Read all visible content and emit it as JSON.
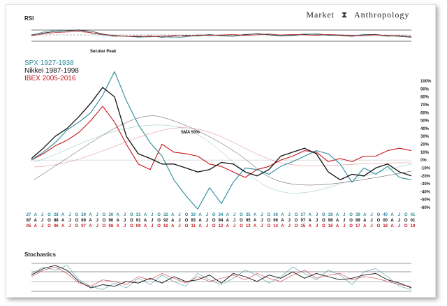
{
  "brand": {
    "left": "Market",
    "right": "Anthropology"
  },
  "colors": {
    "spx": "#2e8b9a",
    "nikkei": "#111111",
    "ibex": "#c4161c",
    "grid": "#888888"
  },
  "chart_data": [
    {
      "type": "line",
      "panel": "rsi",
      "title": "RSI",
      "series": [
        {
          "name": "SPX",
          "values": [
            48,
            62,
            70,
            66,
            72,
            58,
            50,
            44,
            46,
            40,
            42,
            44,
            38,
            42,
            48,
            52,
            46,
            44,
            50,
            56,
            52,
            48,
            50,
            54,
            52,
            48,
            50,
            46,
            52,
            50,
            44,
            48,
            42
          ]
        },
        {
          "name": "Nikkei",
          "values": [
            50,
            58,
            64,
            68,
            70,
            66,
            54,
            46,
            44,
            42,
            46,
            40,
            44,
            48,
            46,
            50,
            48,
            46,
            52,
            54,
            50,
            46,
            48,
            52,
            54,
            50,
            48,
            44,
            50,
            52,
            46,
            44,
            40
          ]
        },
        {
          "name": "IBEX",
          "values": [
            46,
            54,
            60,
            62,
            64,
            60,
            52,
            48,
            44,
            46,
            42,
            46,
            48,
            44,
            50,
            48,
            50,
            52,
            48,
            50,
            54,
            50,
            52,
            50,
            48,
            52,
            50,
            48,
            46,
            50,
            48,
            46,
            44
          ]
        }
      ],
      "ylim": [
        0,
        100
      ]
    },
    {
      "type": "line",
      "panel": "main",
      "title": "",
      "series": [
        {
          "name": "SPX 1927-1938",
          "values": [
            0,
            10,
            22,
            38,
            48,
            60,
            82,
            112,
            75,
            45,
            22,
            5,
            -25,
            -45,
            -62,
            -35,
            -55,
            -28,
            -10,
            -12,
            -18,
            -8,
            -2,
            5,
            12,
            8,
            -5,
            -28,
            -10,
            -18,
            -8,
            -22,
            -25
          ]
        },
        {
          "name": "Nikkei 1987-1998",
          "values": [
            2,
            15,
            30,
            40,
            55,
            72,
            92,
            80,
            30,
            8,
            2,
            -5,
            -5,
            -10,
            -15,
            -12,
            -3,
            -5,
            -15,
            -20,
            -12,
            5,
            10,
            15,
            8,
            -15,
            -25,
            -18,
            -20,
            -10,
            -5,
            -15,
            -20
          ]
        },
        {
          "name": "IBEX 2005-2016",
          "values": [
            0,
            8,
            18,
            25,
            35,
            50,
            68,
            48,
            20,
            -5,
            -12,
            20,
            10,
            8,
            5,
            -5,
            -8,
            -15,
            -22,
            -12,
            -8,
            0,
            5,
            12,
            10,
            -2,
            2,
            -2,
            5,
            5,
            12,
            15,
            12
          ]
        }
      ],
      "sma_label": "SMA 50%",
      "annotations": [
        "Secular Peak"
      ],
      "yticks": [
        "100%",
        "90%",
        "80%",
        "70%",
        "60%",
        "50%",
        "40%",
        "30%",
        "20%",
        "10%",
        "0%",
        "-10%",
        "-20%",
        "-30%",
        "-40%",
        "-50%",
        "-60%"
      ],
      "ylim": [
        -60,
        100
      ]
    },
    {
      "type": "line",
      "panel": "stochastics",
      "title": "Stochastics",
      "series": [
        {
          "name": "SPX",
          "values": [
            60,
            80,
            70,
            85,
            40,
            20,
            10,
            30,
            15,
            45,
            25,
            55,
            35,
            20,
            60,
            40,
            25,
            45,
            70,
            55,
            30,
            50,
            80,
            60,
            40,
            70,
            55,
            25,
            65,
            75,
            50,
            20,
            10
          ]
        },
        {
          "name": "Nikkei",
          "values": [
            55,
            75,
            85,
            70,
            35,
            15,
            25,
            20,
            35,
            30,
            45,
            30,
            50,
            35,
            40,
            55,
            30,
            60,
            50,
            35,
            55,
            45,
            65,
            45,
            60,
            50,
            40,
            45,
            55,
            60,
            40,
            30,
            15
          ]
        },
        {
          "name": "IBEX",
          "values": [
            50,
            70,
            80,
            60,
            30,
            20,
            40,
            35,
            25,
            50,
            40,
            60,
            45,
            30,
            50,
            35,
            45,
            55,
            40,
            60,
            45,
            35,
            55,
            70,
            45,
            55,
            60,
            40,
            50,
            45,
            35,
            25,
            20
          ]
        }
      ],
      "ylim": [
        0,
        100
      ]
    }
  ],
  "legend": [
    {
      "label": "SPX 1927-1938",
      "color": "#2e8b9a"
    },
    {
      "label": "Nikkei 1987-1998",
      "color": "#111111"
    },
    {
      "label": "IBEX 2005-2016",
      "color": "#c4161c"
    }
  ],
  "x_axis": {
    "spx": [
      "27",
      "A",
      "J",
      "O",
      "28",
      "A",
      "J",
      "O",
      "29",
      "A",
      "J",
      "O",
      "30",
      "A",
      "J",
      "O",
      "31",
      "A",
      "J",
      "O",
      "32",
      "A",
      "J",
      "O",
      "33",
      "A",
      "J",
      "O",
      "34",
      "A",
      "J",
      "O",
      "35",
      "A",
      "J",
      "O",
      "36",
      "A",
      "J",
      "O",
      "37",
      "A",
      "J",
      "O",
      "38",
      "A",
      "J",
      "O",
      "39",
      "A",
      "J",
      "O",
      "40",
      "A",
      "J",
      "O",
      "41"
    ],
    "nikkei": [
      "87",
      "A",
      "J",
      "O",
      "88",
      "A",
      "J",
      "O",
      "89",
      "A",
      "J",
      "O",
      "90",
      "A",
      "J",
      "O",
      "91",
      "A",
      "J",
      "O",
      "92",
      "A",
      "J",
      "O",
      "93",
      "A",
      "J",
      "O",
      "94",
      "A",
      "J",
      "O",
      "95",
      "A",
      "J",
      "O",
      "96",
      "A",
      "J",
      "O",
      "97",
      "A",
      "J",
      "O",
      "98",
      "A",
      "J",
      "O",
      "99",
      "A",
      "J",
      "O",
      "00",
      "A",
      "J",
      "O",
      "01"
    ],
    "ibex": [
      "05",
      "A",
      "J",
      "O",
      "06",
      "A",
      "J",
      "O",
      "07",
      "A",
      "J",
      "O",
      "08",
      "A",
      "J",
      "O",
      "09",
      "A",
      "J",
      "O",
      "10",
      "A",
      "J",
      "O",
      "11",
      "A",
      "J",
      "O",
      "12",
      "A",
      "J",
      "O",
      "13",
      "A",
      "J",
      "O",
      "14",
      "A",
      "J",
      "O",
      "15",
      "A",
      "J",
      "O",
      "16",
      "A",
      "J",
      "O",
      "17",
      "A",
      "J",
      "O",
      "18",
      "A",
      "J",
      "O",
      "19"
    ]
  }
}
